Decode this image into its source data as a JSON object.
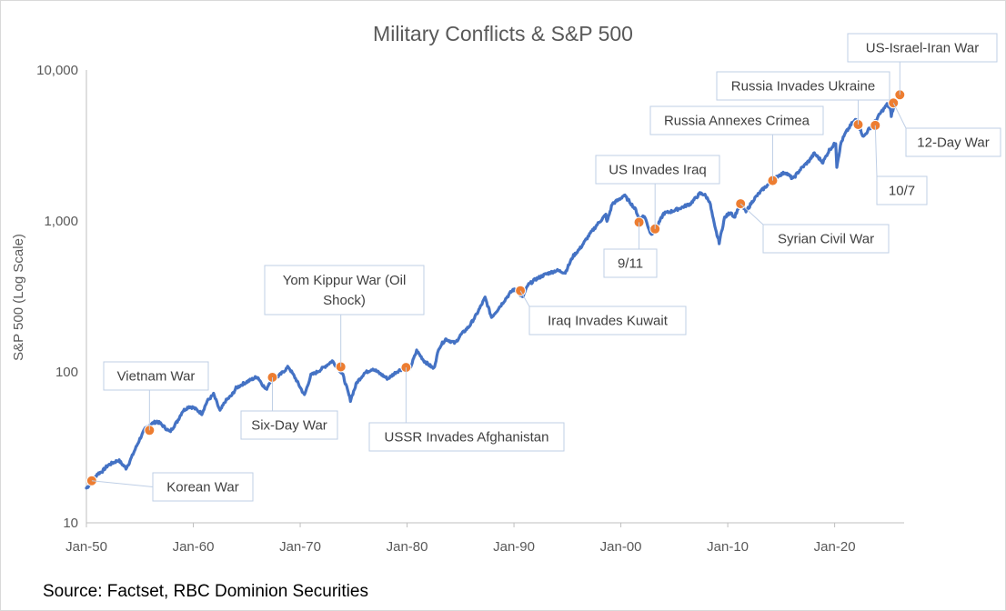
{
  "chart_data": {
    "type": "line",
    "title": "Military Conflicts & S&P 500",
    "ylabel": "S&P 500 (Log Scale)",
    "xlabel": "",
    "y_scale": "log",
    "ylim": [
      10,
      15000
    ],
    "xlim": [
      1950.0,
      2026.5
    ],
    "y_ticks": [
      {
        "value": 10,
        "label": "10"
      },
      {
        "value": 100,
        "label": "100"
      },
      {
        "value": 1000,
        "label": "1,000"
      },
      {
        "value": 10000,
        "label": "10,000"
      }
    ],
    "x_ticks": [
      {
        "value": 1950,
        "label": "Jan-50"
      },
      {
        "value": 1960,
        "label": "Jan-60"
      },
      {
        "value": 1970,
        "label": "Jan-70"
      },
      {
        "value": 1980,
        "label": "Jan-80"
      },
      {
        "value": 1990,
        "label": "Jan-90"
      },
      {
        "value": 2000,
        "label": "Jan-00"
      },
      {
        "value": 2010,
        "label": "Jan-10"
      },
      {
        "value": 2020,
        "label": "Jan-20"
      }
    ],
    "series": [
      {
        "color": "#4472c4",
        "points": [
          [
            1950.0,
            17
          ],
          [
            1950.5,
            18.5
          ],
          [
            1951.0,
            21
          ],
          [
            1951.5,
            22
          ],
          [
            1952.0,
            24
          ],
          [
            1952.5,
            25
          ],
          [
            1953.0,
            26
          ],
          [
            1953.7,
            23
          ],
          [
            1954.0,
            25
          ],
          [
            1954.5,
            30
          ],
          [
            1955.0,
            36
          ],
          [
            1955.5,
            42
          ],
          [
            1956.0,
            45
          ],
          [
            1956.6,
            47
          ],
          [
            1957.0,
            45
          ],
          [
            1957.8,
            40
          ],
          [
            1958.5,
            47
          ],
          [
            1959.0,
            55
          ],
          [
            1959.6,
            59
          ],
          [
            1960.0,
            58
          ],
          [
            1960.8,
            53
          ],
          [
            1961.3,
            64
          ],
          [
            1961.9,
            71
          ],
          [
            1962.5,
            55
          ],
          [
            1963.0,
            64
          ],
          [
            1963.6,
            70
          ],
          [
            1964.0,
            78
          ],
          [
            1964.6,
            83
          ],
          [
            1965.3,
            88
          ],
          [
            1966.0,
            93
          ],
          [
            1966.8,
            76
          ],
          [
            1967.3,
            90
          ],
          [
            1968.0,
            94
          ],
          [
            1968.9,
            108
          ],
          [
            1969.5,
            92
          ],
          [
            1970.4,
            70
          ],
          [
            1971.0,
            95
          ],
          [
            1971.6,
            100
          ],
          [
            1972.2,
            107
          ],
          [
            1973.0,
            118
          ],
          [
            1973.6,
            105
          ],
          [
            1974.0,
            95
          ],
          [
            1974.7,
            65
          ],
          [
            1975.3,
            85
          ],
          [
            1976.0,
            98
          ],
          [
            1976.8,
            105
          ],
          [
            1977.5,
            97
          ],
          [
            1978.2,
            90
          ],
          [
            1979.0,
            100
          ],
          [
            1979.8,
            107
          ],
          [
            1980.2,
            102
          ],
          [
            1980.9,
            138
          ],
          [
            1981.6,
            118
          ],
          [
            1982.5,
            105
          ],
          [
            1983.0,
            145
          ],
          [
            1983.6,
            165
          ],
          [
            1984.5,
            155
          ],
          [
            1985.0,
            175
          ],
          [
            1985.8,
            200
          ],
          [
            1986.5,
            240
          ],
          [
            1987.3,
            310
          ],
          [
            1987.9,
            230
          ],
          [
            1988.5,
            260
          ],
          [
            1989.3,
            310
          ],
          [
            1989.9,
            350
          ],
          [
            1990.3,
            345
          ],
          [
            1990.8,
            310
          ],
          [
            1991.3,
            375
          ],
          [
            1992.0,
            410
          ],
          [
            1993.0,
            445
          ],
          [
            1994.0,
            470
          ],
          [
            1994.8,
            455
          ],
          [
            1995.5,
            580
          ],
          [
            1996.2,
            660
          ],
          [
            1997.0,
            800
          ],
          [
            1997.8,
            950
          ],
          [
            1998.6,
            1100
          ],
          [
            1998.7,
            980
          ],
          [
            1999.2,
            1300
          ],
          [
            1999.8,
            1380
          ],
          [
            2000.3,
            1480
          ],
          [
            2000.9,
            1320
          ],
          [
            2001.4,
            1180
          ],
          [
            2001.7,
            1040
          ],
          [
            2002.2,
            1080
          ],
          [
            2002.8,
            820
          ],
          [
            2003.2,
            860
          ],
          [
            2004.0,
            1120
          ],
          [
            2004.8,
            1160
          ],
          [
            2005.6,
            1220
          ],
          [
            2006.5,
            1300
          ],
          [
            2007.4,
            1520
          ],
          [
            2007.8,
            1500
          ],
          [
            2008.3,
            1350
          ],
          [
            2008.8,
            900
          ],
          [
            2009.2,
            720
          ],
          [
            2009.7,
            1050
          ],
          [
            2010.3,
            1150
          ],
          [
            2010.6,
            1050
          ],
          [
            2011.2,
            1320
          ],
          [
            2011.7,
            1150
          ],
          [
            2012.4,
            1380
          ],
          [
            2013.2,
            1600
          ],
          [
            2014.0,
            1800
          ],
          [
            2014.7,
            1990
          ],
          [
            2015.4,
            2100
          ],
          [
            2016.1,
            1900
          ],
          [
            2016.8,
            2200
          ],
          [
            2017.6,
            2500
          ],
          [
            2018.1,
            2800
          ],
          [
            2018.9,
            2450
          ],
          [
            2019.5,
            2950
          ],
          [
            2020.1,
            3300
          ],
          [
            2020.2,
            2300
          ],
          [
            2020.6,
            3300
          ],
          [
            2021.0,
            3800
          ],
          [
            2021.6,
            4400
          ],
          [
            2022.0,
            4700
          ],
          [
            2022.7,
            3600
          ],
          [
            2023.2,
            4050
          ],
          [
            2023.7,
            4450
          ],
          [
            2024.3,
            5200
          ],
          [
            2024.9,
            5900
          ],
          [
            2025.2,
            5500
          ],
          [
            2025.3,
            5000
          ],
          [
            2025.8,
            6500
          ],
          [
            2026.2,
            6850
          ]
        ]
      }
    ],
    "events": [
      {
        "label": [
          "Korean War"
        ],
        "x": 1950.5,
        "y": 19,
        "anchor": "right"
      },
      {
        "label": [
          "Vietnam War"
        ],
        "x": 1955.9,
        "y": 41,
        "anchor": "above"
      },
      {
        "label": [
          "Six-Day War"
        ],
        "x": 1967.4,
        "y": 92,
        "anchor": "below"
      },
      {
        "label": [
          "Yom Kippur War (Oil",
          "Shock)"
        ],
        "x": 1973.8,
        "y": 108,
        "anchor": "above"
      },
      {
        "label": [
          "USSR Invades Afghanistan"
        ],
        "x": 1979.9,
        "y": 107,
        "anchor": "below"
      },
      {
        "label": [
          "Iraq Invades Kuwait"
        ],
        "x": 1990.6,
        "y": 345,
        "anchor": "right"
      },
      {
        "label": [
          "9/11"
        ],
        "x": 2001.7,
        "y": 980,
        "anchor": "below"
      },
      {
        "label": [
          "US Invades Iraq"
        ],
        "x": 2003.2,
        "y": 885,
        "anchor": "above"
      },
      {
        "label": [
          "Syrian Civil War"
        ],
        "x": 2011.2,
        "y": 1300,
        "anchor": "right"
      },
      {
        "label": [
          "Russia Annexes Crimea"
        ],
        "x": 2014.2,
        "y": 1850,
        "anchor": "above"
      },
      {
        "label": [
          "Russia Invades Ukraine"
        ],
        "x": 2022.2,
        "y": 4350,
        "anchor": "above"
      },
      {
        "label": [
          "10/7"
        ],
        "x": 2023.8,
        "y": 4300,
        "anchor": "below"
      },
      {
        "label": [
          "12-Day War"
        ],
        "x": 2025.5,
        "y": 6050,
        "anchor": "right"
      },
      {
        "label": [
          "US-Israel-Iran War"
        ],
        "x": 2026.1,
        "y": 6850,
        "anchor": "above"
      }
    ]
  },
  "source": "Source: Factset, RBC Dominion Securities",
  "colors": {
    "line": "#4472c4",
    "marker": "#ed7d31",
    "axis": "#bfbfbf",
    "callout_border": "#bfcfe6"
  }
}
